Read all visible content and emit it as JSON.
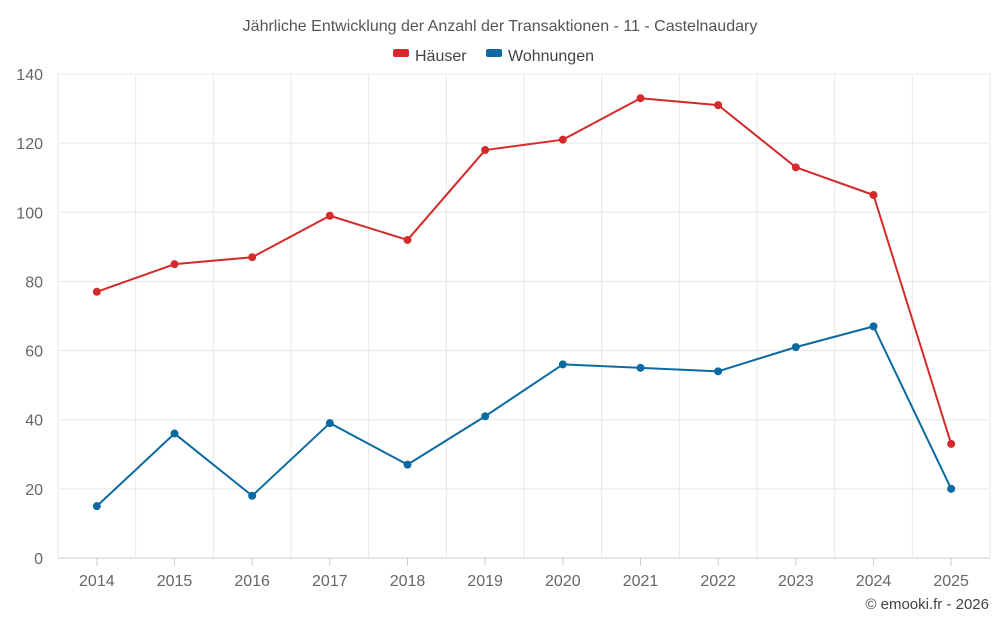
{
  "chart_data": {
    "type": "line",
    "title": "Jährliche Entwicklung der Anzahl der Transaktionen - 11 - Castelnaudary",
    "categories": [
      "2014",
      "2015",
      "2016",
      "2017",
      "2018",
      "2019",
      "2020",
      "2021",
      "2022",
      "2023",
      "2024",
      "2025"
    ],
    "series": [
      {
        "name": "Häuser",
        "color": "#d42a2a",
        "values": [
          77,
          85,
          87,
          99,
          92,
          118,
          121,
          133,
          131,
          113,
          105,
          33
        ]
      },
      {
        "name": "Wohnungen",
        "color": "#0a6aa1",
        "values": [
          15,
          36,
          18,
          39,
          27,
          41,
          56,
          55,
          54,
          61,
          67,
          20
        ]
      }
    ],
    "ylim": [
      0,
      140
    ],
    "yticks": [
      0,
      20,
      40,
      60,
      80,
      100,
      120,
      140
    ],
    "grid": true,
    "legend": "top-center",
    "xlabel": "",
    "ylabel": ""
  },
  "credit": "© emooki.fr - 2026"
}
